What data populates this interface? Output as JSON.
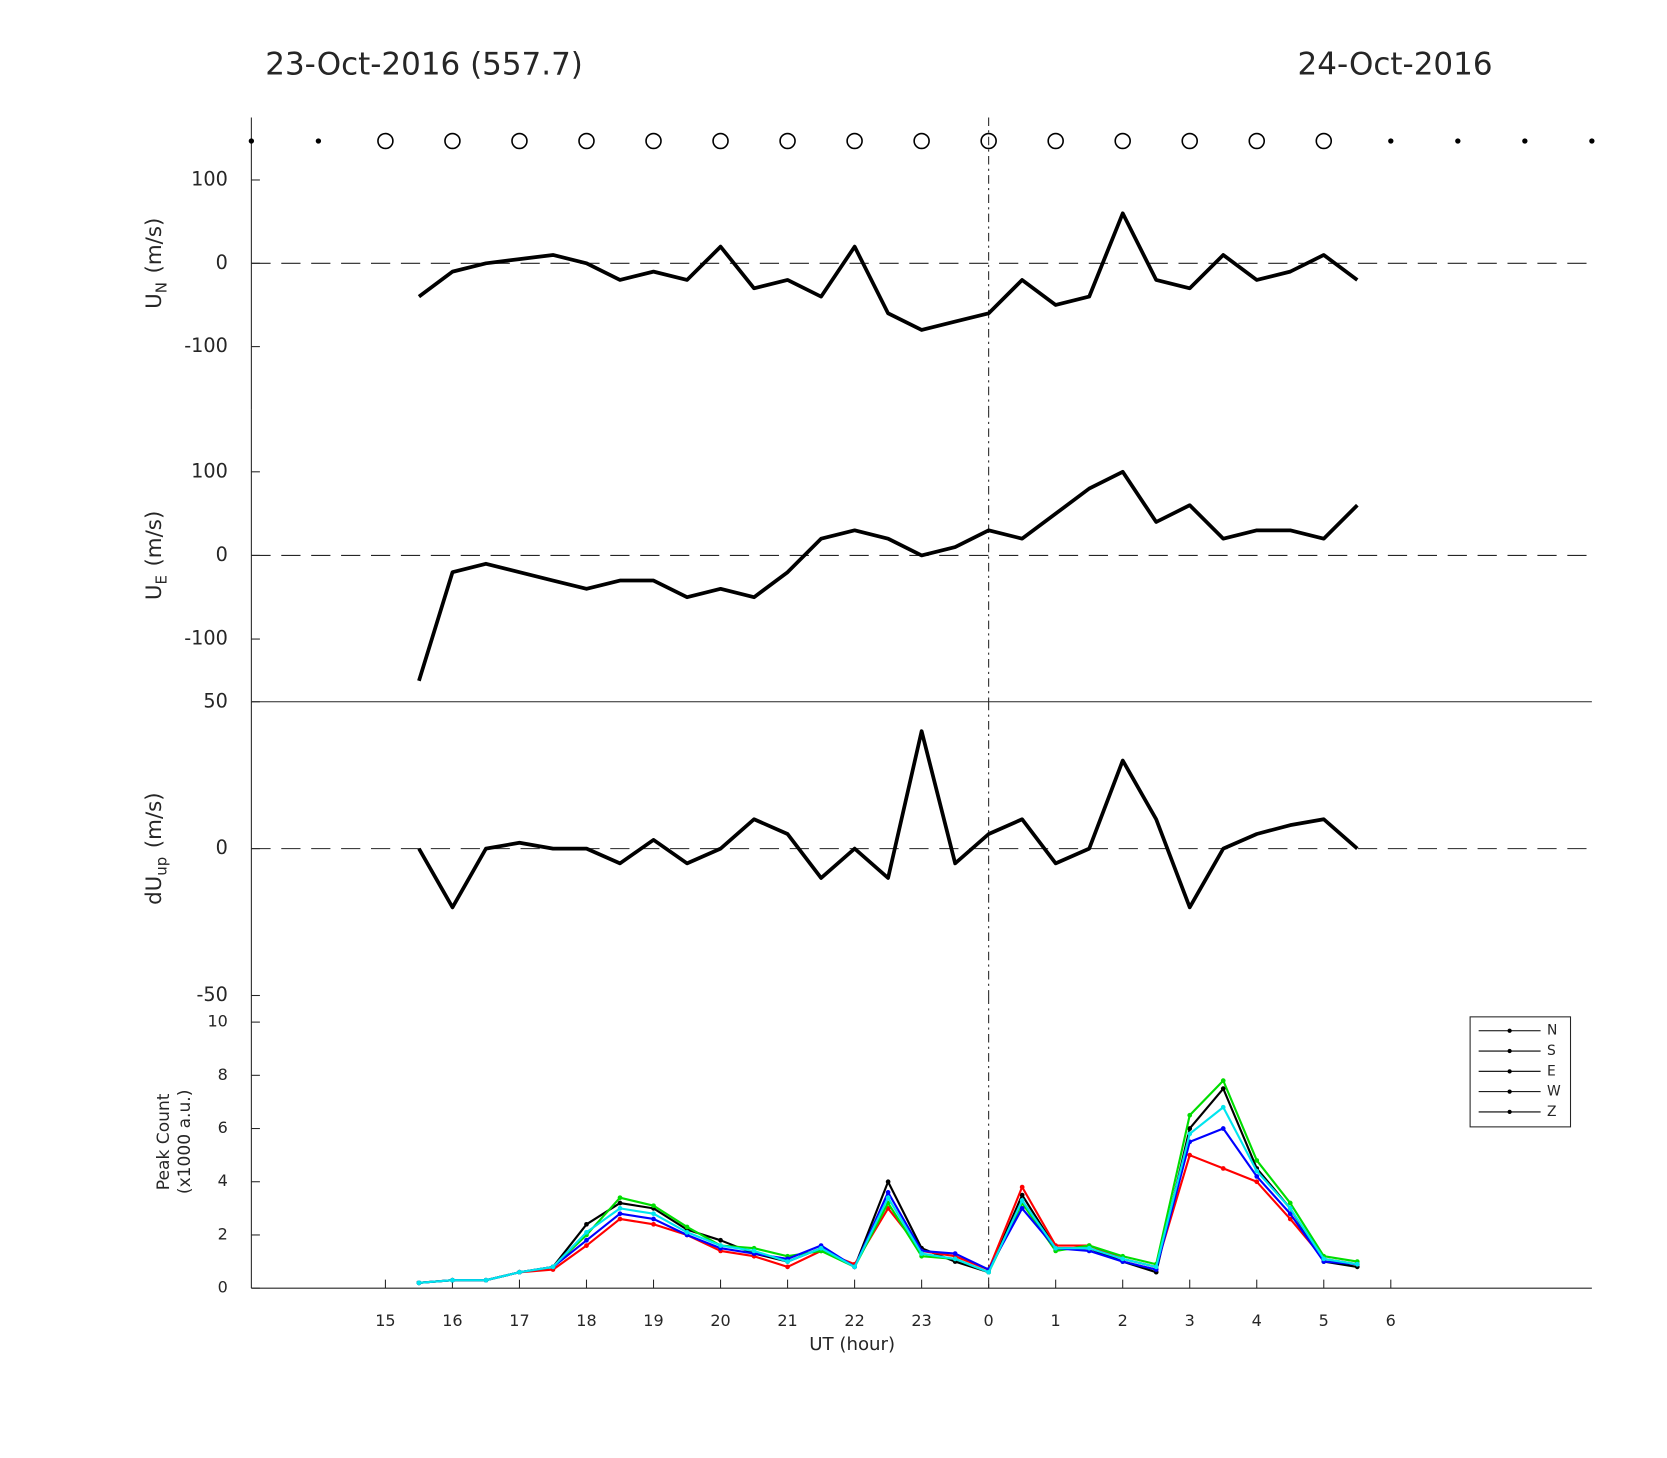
{
  "chart_data": [
    {
      "type": "line",
      "title": "23-Oct-2016 (557.7)",
      "title_right": "24-Oct-2016",
      "observation_hours": [
        15,
        16,
        17,
        18,
        19,
        20,
        21,
        22,
        23,
        24,
        25,
        26,
        27,
        28,
        29
      ],
      "idle_hours": [
        13,
        14,
        30,
        31,
        32,
        33
      ],
      "ylabel": {
        "text": "U",
        "sub": "N",
        "unit": "(m/s)"
      },
      "x": [
        15.5,
        16,
        16.5,
        17,
        17.5,
        18,
        18.5,
        19,
        19.5,
        20,
        20.5,
        21,
        21.5,
        22,
        22.5,
        23,
        23.5,
        24,
        24.5,
        25,
        25.5,
        26,
        26.5,
        27,
        27.5,
        28,
        28.5,
        29,
        29.5
      ],
      "values": [
        -40,
        -10,
        0,
        5,
        10,
        0,
        -20,
        -10,
        -20,
        20,
        -30,
        -20,
        -40,
        20,
        -60,
        -80,
        -70,
        -60,
        -20,
        -50,
        -40,
        60,
        -20,
        -30,
        10,
        -20,
        -10,
        10,
        -20
      ],
      "color": "#000000",
      "xlim": [
        13,
        33
      ],
      "ylim": [
        -175,
        175
      ],
      "yticks": [
        -100,
        0,
        100
      ],
      "hline": 0,
      "vline": 24
    },
    {
      "type": "line",
      "ylabel": {
        "text": "U",
        "sub": "E",
        "unit": "(m/s)"
      },
      "x": [
        15.5,
        16,
        16.5,
        17,
        17.5,
        18,
        18.5,
        19,
        19.5,
        20,
        20.5,
        21,
        21.5,
        22,
        22.5,
        23,
        23.5,
        24,
        24.5,
        25,
        25.5,
        26,
        26.5,
        27,
        27.5,
        28,
        28.5,
        29,
        29.5
      ],
      "values": [
        -150,
        -20,
        -10,
        -20,
        -30,
        -40,
        -30,
        -30,
        -50,
        -40,
        -50,
        -20,
        20,
        30,
        20,
        0,
        10,
        30,
        20,
        50,
        80,
        100,
        40,
        60,
        20,
        30,
        30,
        20,
        60
      ],
      "color": "#000000",
      "xlim": [
        13,
        33
      ],
      "ylim": [
        -175,
        175
      ],
      "yticks": [
        -100,
        0,
        100
      ],
      "hline": 0,
      "vline": 24
    },
    {
      "type": "line",
      "ylabel": {
        "text": "dU",
        "sub": "up",
        "unit": "(m/s)"
      },
      "x": [
        15.5,
        16,
        16.5,
        17,
        17.5,
        18,
        18.5,
        19,
        19.5,
        20,
        20.5,
        21,
        21.5,
        22,
        22.5,
        23,
        23.5,
        24,
        24.5,
        25,
        25.5,
        26,
        26.5,
        27,
        27.5,
        28,
        28.5,
        29,
        29.5
      ],
      "values": [
        0,
        -20,
        0,
        2,
        0,
        0,
        -5,
        3,
        -5,
        0,
        10,
        5,
        -10,
        0,
        -10,
        40,
        -5,
        5,
        10,
        -5,
        0,
        30,
        10,
        -20,
        0,
        5,
        8,
        10,
        0
      ],
      "color": "#000000",
      "xlim": [
        13,
        33
      ],
      "ylim": [
        -50,
        50
      ],
      "yticks": [
        -50,
        0,
        50
      ],
      "hline": 0,
      "vline": 24
    },
    {
      "type": "line",
      "ylabel": [
        "Peak Count",
        "(x1000 a.u.)"
      ],
      "xlabel": "UT (hour)",
      "x": [
        15.5,
        16,
        16.5,
        17,
        17.5,
        18,
        18.5,
        19,
        19.5,
        20,
        20.5,
        21,
        21.5,
        22,
        22.5,
        23,
        23.5,
        24,
        24.5,
        25,
        25.5,
        26,
        26.5,
        27,
        27.5,
        28,
        28.5,
        29,
        29.5
      ],
      "series": [
        {
          "name": "N",
          "color": "#000000",
          "values": [
            0.2,
            0.3,
            0.3,
            0.6,
            0.8,
            2.4,
            3.2,
            3.0,
            2.2,
            1.8,
            1.3,
            1.0,
            1.5,
            0.8,
            4.0,
            1.5,
            1.0,
            0.6,
            3.5,
            1.5,
            1.5,
            1.0,
            0.6,
            6.0,
            7.5,
            4.5,
            3.0,
            1.0,
            0.8
          ]
        },
        {
          "name": "S",
          "color": "#ff0000",
          "values": [
            0.2,
            0.3,
            0.3,
            0.6,
            0.7,
            1.6,
            2.6,
            2.4,
            2.0,
            1.4,
            1.2,
            0.8,
            1.4,
            0.9,
            3.0,
            1.4,
            1.2,
            0.7,
            3.8,
            1.6,
            1.6,
            1.1,
            0.8,
            5.0,
            4.5,
            4.0,
            2.6,
            1.1,
            0.9
          ]
        },
        {
          "name": "E",
          "color": "#00dd00",
          "values": [
            0.2,
            0.3,
            0.3,
            0.6,
            0.8,
            2.0,
            3.4,
            3.1,
            2.3,
            1.6,
            1.5,
            1.2,
            1.4,
            0.8,
            3.2,
            1.2,
            1.1,
            0.6,
            3.2,
            1.4,
            1.6,
            1.2,
            0.9,
            6.5,
            7.8,
            4.8,
            3.2,
            1.2,
            1.0
          ]
        },
        {
          "name": "W",
          "color": "#0000ff",
          "values": [
            0.2,
            0.3,
            0.3,
            0.6,
            0.8,
            1.8,
            2.8,
            2.6,
            2.0,
            1.5,
            1.3,
            1.1,
            1.6,
            0.8,
            3.6,
            1.4,
            1.3,
            0.7,
            3.0,
            1.5,
            1.4,
            1.0,
            0.7,
            5.5,
            6.0,
            4.2,
            2.8,
            1.0,
            0.9
          ]
        },
        {
          "name": "Z",
          "color": "#00e5ee",
          "values": [
            0.2,
            0.3,
            0.3,
            0.6,
            0.8,
            2.1,
            3.0,
            2.8,
            2.1,
            1.6,
            1.4,
            1.0,
            1.5,
            0.8,
            3.4,
            1.3,
            1.1,
            0.6,
            3.3,
            1.5,
            1.5,
            1.1,
            0.8,
            5.8,
            6.8,
            4.4,
            3.0,
            1.1,
            0.9
          ]
        }
      ],
      "legend": "upper right",
      "legend_color": "#000000",
      "xlim": [
        13,
        33
      ],
      "ylim": [
        0,
        11
      ],
      "yticks": [
        0,
        2,
        4,
        6,
        8,
        10
      ],
      "xticks": [
        15,
        16,
        17,
        18,
        19,
        20,
        21,
        22,
        23,
        {
          "value": 24,
          "label": "0"
        },
        {
          "value": 25,
          "label": "1"
        },
        {
          "value": 26,
          "label": "2"
        },
        {
          "value": 27,
          "label": "3"
        },
        {
          "value": 28,
          "label": "4"
        },
        {
          "value": 29,
          "label": "5"
        },
        {
          "value": 30,
          "label": "6"
        }
      ],
      "vline": 24
    }
  ]
}
